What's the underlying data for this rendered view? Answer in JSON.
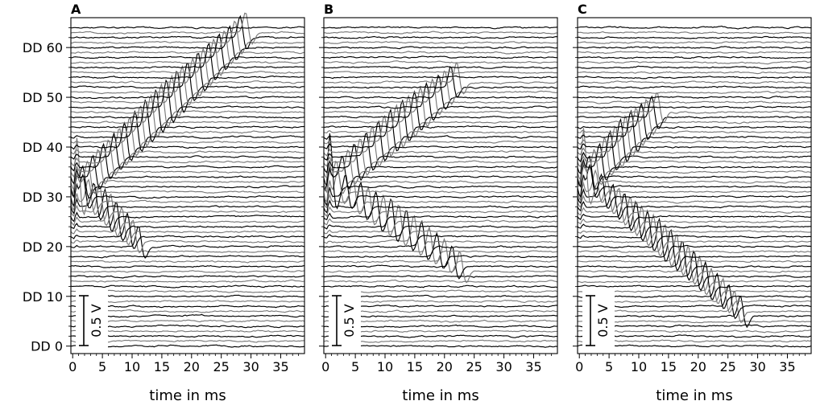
{
  "chart_data": [
    {
      "type": "line",
      "panel_label": "A",
      "xlabel": "time in ms",
      "xlim": [
        -0.3,
        39
      ],
      "x_ticks": [
        0,
        5,
        10,
        15,
        20,
        25,
        30,
        35
      ],
      "ylim": [
        -1.5,
        66
      ],
      "y_ticks": [
        0,
        10,
        20,
        30,
        40,
        50,
        60
      ],
      "y_tick_labels": [
        "DD 0",
        "DD 10",
        "DD 20",
        "DD 30",
        "DD 40",
        "DD 50",
        "DD 60"
      ],
      "trace_count": 65,
      "trace_colors": [
        "#000000",
        "#7a7a7a"
      ],
      "scale_bar": {
        "label": "0.5 V",
        "value_v": 0.5
      },
      "stimulus": {
        "start_dd": 31,
        "start_ms": 0.2
      },
      "wavefronts": [
        {
          "from_dd": 31,
          "to_dd": 63,
          "end_ms": 28.5,
          "amplitude_v": 0.3
        },
        {
          "from_dd": 31,
          "to_dd": 20,
          "end_ms": 10.5,
          "amplitude_v": 0.3
        }
      ]
    },
    {
      "type": "line",
      "panel_label": "B",
      "xlabel": "time in ms",
      "xlim": [
        -0.3,
        39
      ],
      "x_ticks": [
        0,
        5,
        10,
        15,
        20,
        25,
        30,
        35
      ],
      "ylim": [
        -1.5,
        66
      ],
      "y_ticks": [
        0,
        10,
        20,
        30,
        40,
        50,
        60
      ],
      "trace_count": 65,
      "trace_colors": [
        "#000000",
        "#7a7a7a"
      ],
      "scale_bar": {
        "label": "0.5 V",
        "value_v": 0.5
      },
      "stimulus": {
        "start_dd": 32,
        "start_ms": 0.2
      },
      "wavefronts": [
        {
          "from_dd": 32,
          "to_dd": 53,
          "end_ms": 21.5,
          "amplitude_v": 0.3
        },
        {
          "from_dd": 32,
          "to_dd": 15,
          "end_ms": 22,
          "amplitude_v": 0.3
        }
      ]
    },
    {
      "type": "line",
      "panel_label": "C",
      "xlabel": "time in ms",
      "xlim": [
        -0.3,
        39
      ],
      "x_ticks": [
        0,
        5,
        10,
        15,
        20,
        25,
        30,
        35
      ],
      "ylim": [
        -1.5,
        66
      ],
      "y_ticks": [
        0,
        10,
        20,
        30,
        40,
        50,
        60
      ],
      "trace_count": 65,
      "trace_colors": [
        "#000000",
        "#7a7a7a"
      ],
      "scale_bar": {
        "label": "0.5 V",
        "value_v": 0.5
      },
      "stimulus": {
        "start_dd": 33,
        "start_ms": 0.2
      },
      "wavefronts": [
        {
          "from_dd": 33,
          "to_dd": 47,
          "end_ms": 12.5,
          "amplitude_v": 0.3
        },
        {
          "from_dd": 33,
          "to_dd": 6,
          "end_ms": 26.5,
          "amplitude_v": 0.3
        }
      ]
    }
  ]
}
